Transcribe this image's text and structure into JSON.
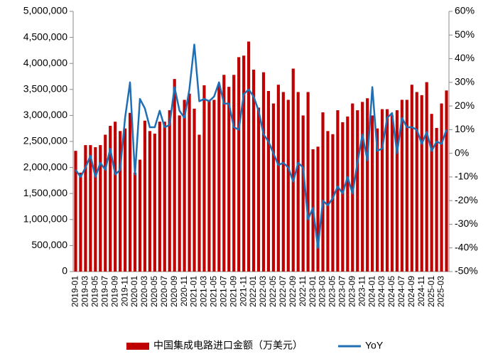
{
  "chart_data": {
    "type": "bar-line",
    "categories": [
      "2019-01",
      null,
      "2019-03",
      null,
      "2019-05",
      null,
      "2019-07",
      null,
      "2019-09",
      null,
      "2019-11",
      null,
      "2020-01",
      null,
      "2020-03",
      null,
      "2020-05",
      null,
      "2020-07",
      null,
      "2020-09",
      null,
      "2020-11",
      null,
      "2021-01",
      null,
      "2021-03",
      null,
      "2021-05",
      null,
      "2021-07",
      null,
      "2021-09",
      null,
      "2021-11",
      null,
      "2022-01",
      null,
      "2022-03",
      null,
      "2022-05",
      null,
      "2022-07",
      null,
      "2022-09",
      null,
      "2022-11",
      null,
      "2023-01",
      null,
      "2023-03",
      null,
      "2023-05",
      null,
      "2023-07",
      null,
      "2023-09",
      null,
      "2023-11",
      null,
      "2024-01",
      null,
      "2024-03",
      null,
      "2024-05",
      null,
      "2024-07",
      null,
      "2024-09",
      null,
      "2024-11",
      null,
      "2025-01",
      null,
      "2025-03",
      null
    ],
    "series": [
      {
        "name": "中国集成电路进口金额（万美元）",
        "color": "#c00000",
        "type": "bar",
        "values": [
          2320000,
          1900000,
          2430000,
          2430000,
          2390000,
          2430000,
          2630000,
          2800000,
          2880000,
          2700000,
          2750000,
          3050000,
          1900000,
          2150000,
          2900000,
          2700000,
          2650000,
          2880000,
          2880000,
          3100000,
          3700000,
          3000000,
          3300000,
          3420000,
          3130000,
          2630000,
          3580000,
          3300000,
          3300000,
          3600000,
          3780000,
          3550000,
          3780000,
          4120000,
          4150000,
          4420000,
          3880000,
          3150000,
          3830000,
          3470000,
          3230000,
          3590000,
          3450000,
          3300000,
          3900000,
          3450000,
          3000000,
          3450000,
          2350000,
          2400000,
          3060000,
          2700000,
          2640000,
          3100000,
          2870000,
          2980000,
          3230000,
          3100000,
          3260000,
          3330000,
          3000000,
          2750000,
          3120000,
          3120000,
          3000000,
          3100000,
          3300000,
          3300000,
          3590000,
          3450000,
          3390000,
          3640000,
          3030000,
          2760000,
          3230000,
          3480000
        ]
      },
      {
        "name": "YoY",
        "color": "#1f6fb5",
        "type": "line",
        "axis": "y2",
        "values": [
          -7,
          -10,
          -6,
          -1,
          -10,
          -4,
          -7,
          2,
          -9,
          -7,
          15,
          30,
          -9,
          23,
          19,
          11,
          11,
          18,
          11,
          12,
          28,
          18,
          15,
          27,
          46,
          22,
          23,
          22,
          24,
          30,
          21,
          21,
          11,
          10,
          25,
          27,
          24,
          18,
          8,
          5,
          0,
          -5,
          -4,
          -6,
          -12,
          -4,
          -6,
          -28,
          -23,
          -40,
          -20,
          -22,
          -19,
          -14,
          -17,
          -10,
          -17,
          -4,
          8,
          -3,
          28,
          1,
          2,
          15,
          17,
          0,
          15,
          11,
          11,
          10,
          4,
          9,
          1,
          5,
          4,
          10
        ]
      }
    ],
    "ylim": [
      0,
      5000000
    ],
    "yticks": [
      0,
      {
        "value": 500000,
        "label": "500,000"
      },
      {
        "value": 1000000,
        "label": "1,000,000"
      },
      {
        "value": 1500000,
        "label": "1,500,000"
      },
      {
        "value": 2000000,
        "label": "2,000,000"
      },
      {
        "value": 2500000,
        "label": "2,500,000"
      },
      {
        "value": 3000000,
        "label": "3,000,000"
      },
      {
        "value": 3500000,
        "label": "3,500,000"
      },
      {
        "value": 4000000,
        "label": "4,000,000"
      },
      {
        "value": 4500000,
        "label": "4,500,000"
      },
      {
        "value": 5000000,
        "label": "5,000,000"
      }
    ],
    "y2lim": [
      -50,
      60
    ],
    "y2ticks": [
      {
        "value": -50,
        "label": "-50%"
      },
      {
        "value": -40,
        "label": "-40%"
      },
      {
        "value": -30,
        "label": "-30%"
      },
      {
        "value": -20,
        "label": "-20%"
      },
      {
        "value": -10,
        "label": "-10%"
      },
      {
        "value": 0,
        "label": "0%"
      },
      {
        "value": 10,
        "label": "10%"
      },
      {
        "value": 20,
        "label": "20%"
      },
      {
        "value": 30,
        "label": "30%"
      },
      {
        "value": 40,
        "label": "40%"
      },
      {
        "value": 50,
        "label": "50%"
      },
      {
        "value": 60,
        "label": "60%"
      }
    ],
    "legend": "bottom"
  }
}
